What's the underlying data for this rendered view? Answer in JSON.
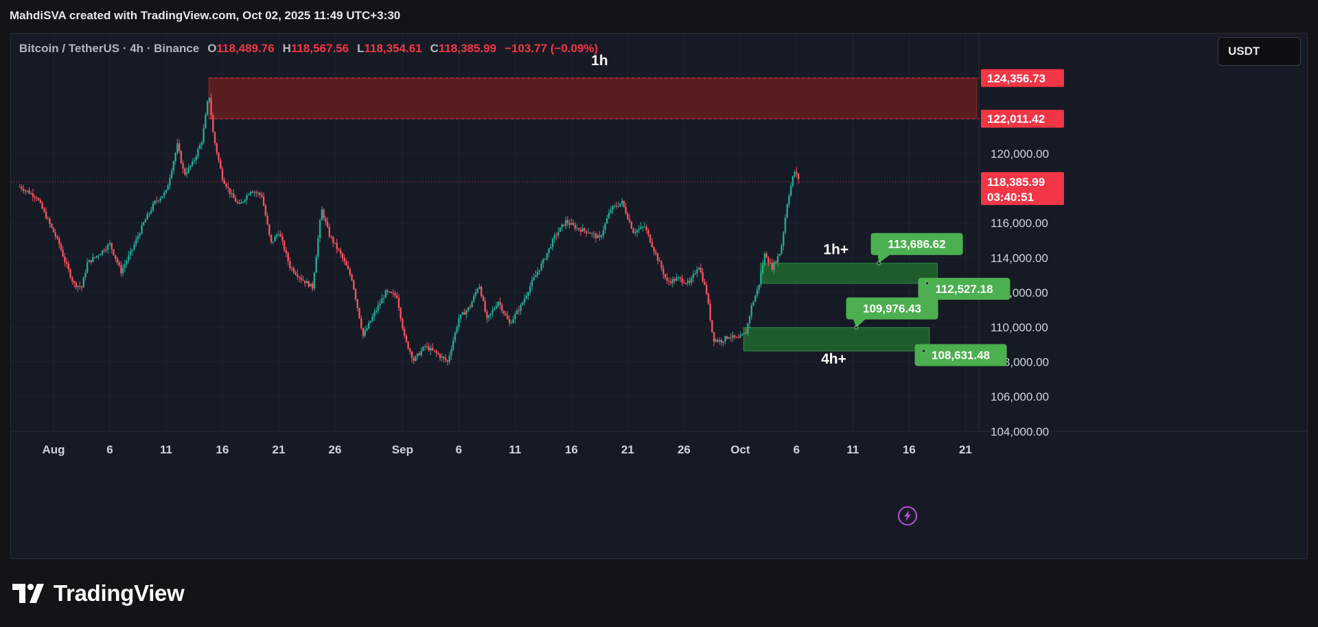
{
  "header": {
    "attribution": "MahdiSVA created with TradingView.com, Oct 02, 2025 11:49 UTC+3:30"
  },
  "legend": {
    "symbol": "Bitcoin / TetherUS · 4h · Binance",
    "open_label": "O",
    "open": "118,489.76",
    "high_label": "H",
    "high": "118,567.56",
    "low_label": "L",
    "low": "118,354.61",
    "close_label": "C",
    "close": "118,385.99",
    "change": "−103.77 (−0.09%)"
  },
  "currency_button": "USDT",
  "footer": {
    "brand": "TradingView"
  },
  "colors": {
    "background": "#161a25",
    "up": "#22ab94",
    "down": "#f7525f",
    "resistance_zone": "#5a1d1f",
    "support_zone": "#1f5c2c",
    "label_green": "#4caf50",
    "label_red": "#f23645"
  },
  "icons": {
    "replay": "lightning-icon",
    "brand": "tradingview-logo-icon"
  },
  "chart_data": {
    "type": "candlestick",
    "timeframe": "4h",
    "ylim": [
      104000,
      126000
    ],
    "x_ticks": [
      {
        "label": "Aug",
        "day": 0
      },
      {
        "label": "6",
        "day": 5
      },
      {
        "label": "11",
        "day": 10
      },
      {
        "label": "16",
        "day": 15
      },
      {
        "label": "21",
        "day": 20
      },
      {
        "label": "26",
        "day": 25
      },
      {
        "label": "Sep",
        "day": 31
      },
      {
        "label": "6",
        "day": 36
      },
      {
        "label": "11",
        "day": 41
      },
      {
        "label": "16",
        "day": 46
      },
      {
        "label": "21",
        "day": 51
      },
      {
        "label": "26",
        "day": 56
      },
      {
        "label": "Oct",
        "day": 61
      },
      {
        "label": "6",
        "day": 66
      },
      {
        "label": "11",
        "day": 71
      },
      {
        "label": "16",
        "day": 76
      },
      {
        "label": "21",
        "day": 81
      }
    ],
    "y_ticks": [
      {
        "label": "120,000.00",
        "value": 120000
      },
      {
        "label": "116,000.00",
        "value": 116000
      },
      {
        "label": "114,000.00",
        "value": 114000
      },
      {
        "label": "112,000.00",
        "value": 112000
      },
      {
        "label": "110,000.00",
        "value": 110000
      },
      {
        "label": "108,000.00",
        "value": 108000
      },
      {
        "label": "106,000.00",
        "value": 106000
      },
      {
        "label": "104,000.00",
        "value": 104000
      }
    ],
    "price_points": [
      {
        "day": -3.0,
        "price": 118100
      },
      {
        "day": -1.5,
        "price": 117500
      },
      {
        "day": 0.5,
        "price": 114800
      },
      {
        "day": 1.0,
        "price": 113800
      },
      {
        "day": 1.8,
        "price": 112500
      },
      {
        "day": 2.5,
        "price": 112300
      },
      {
        "day": 3.0,
        "price": 113700
      },
      {
        "day": 4.0,
        "price": 114200
      },
      {
        "day": 5.0,
        "price": 114800
      },
      {
        "day": 6.0,
        "price": 113200
      },
      {
        "day": 7.0,
        "price": 114500
      },
      {
        "day": 8.0,
        "price": 116000
      },
      {
        "day": 9.0,
        "price": 117200
      },
      {
        "day": 10.0,
        "price": 117800
      },
      {
        "day": 11.0,
        "price": 120500
      },
      {
        "day": 11.6,
        "price": 118800
      },
      {
        "day": 12.4,
        "price": 119500
      },
      {
        "day": 13.2,
        "price": 120800
      },
      {
        "day": 13.8,
        "price": 123500
      },
      {
        "day": 14.2,
        "price": 121000
      },
      {
        "day": 15.0,
        "price": 118600
      },
      {
        "day": 15.8,
        "price": 117600
      },
      {
        "day": 16.5,
        "price": 117000
      },
      {
        "day": 17.5,
        "price": 117900
      },
      {
        "day": 18.5,
        "price": 117600
      },
      {
        "day": 19.3,
        "price": 114800
      },
      {
        "day": 20.0,
        "price": 115500
      },
      {
        "day": 21.0,
        "price": 113500
      },
      {
        "day": 22.0,
        "price": 112800
      },
      {
        "day": 23.0,
        "price": 112300
      },
      {
        "day": 23.8,
        "price": 116800
      },
      {
        "day": 24.5,
        "price": 115300
      },
      {
        "day": 25.5,
        "price": 114200
      },
      {
        "day": 26.5,
        "price": 112800
      },
      {
        "day": 27.5,
        "price": 109500
      },
      {
        "day": 28.5,
        "price": 110800
      },
      {
        "day": 29.5,
        "price": 112000
      },
      {
        "day": 30.5,
        "price": 111800
      },
      {
        "day": 31.2,
        "price": 109300
      },
      {
        "day": 32.0,
        "price": 108100
      },
      {
        "day": 33.0,
        "price": 108900
      },
      {
        "day": 34.0,
        "price": 108500
      },
      {
        "day": 35.0,
        "price": 108000
      },
      {
        "day": 36.0,
        "price": 110500
      },
      {
        "day": 37.0,
        "price": 111200
      },
      {
        "day": 37.8,
        "price": 112500
      },
      {
        "day": 38.5,
        "price": 110400
      },
      {
        "day": 39.5,
        "price": 111500
      },
      {
        "day": 40.5,
        "price": 110200
      },
      {
        "day": 41.5,
        "price": 111200
      },
      {
        "day": 42.5,
        "price": 112600
      },
      {
        "day": 43.5,
        "price": 113800
      },
      {
        "day": 44.5,
        "price": 115200
      },
      {
        "day": 45.5,
        "price": 116100
      },
      {
        "day": 46.5,
        "price": 115700
      },
      {
        "day": 47.5,
        "price": 115500
      },
      {
        "day": 48.5,
        "price": 115100
      },
      {
        "day": 49.5,
        "price": 116800
      },
      {
        "day": 50.5,
        "price": 117200
      },
      {
        "day": 51.5,
        "price": 115500
      },
      {
        "day": 52.5,
        "price": 115800
      },
      {
        "day": 53.5,
        "price": 114200
      },
      {
        "day": 54.5,
        "price": 112600
      },
      {
        "day": 55.5,
        "price": 112800
      },
      {
        "day": 56.5,
        "price": 112500
      },
      {
        "day": 57.3,
        "price": 113600
      },
      {
        "day": 58.0,
        "price": 112000
      },
      {
        "day": 58.6,
        "price": 109300
      },
      {
        "day": 59.3,
        "price": 109200
      },
      {
        "day": 60.0,
        "price": 109500
      },
      {
        "day": 60.8,
        "price": 109300
      },
      {
        "day": 61.5,
        "price": 109700
      },
      {
        "day": 62.0,
        "price": 111200
      },
      {
        "day": 62.6,
        "price": 112300
      },
      {
        "day": 63.2,
        "price": 114300
      },
      {
        "day": 63.8,
        "price": 113400
      },
      {
        "day": 64.6,
        "price": 114400
      },
      {
        "day": 65.2,
        "price": 117300
      },
      {
        "day": 65.8,
        "price": 119000
      },
      {
        "day": 66.3,
        "price": 118400
      }
    ],
    "zones": [
      {
        "type": "resistance",
        "top": 124356.73,
        "bottom": 122011.42,
        "start_day": 13.8,
        "end_day": 82.0
      },
      {
        "type": "support",
        "label": "1h+",
        "top": 113686.62,
        "bottom": 112527.18,
        "start_day": 62.8,
        "end_day": 78.5
      },
      {
        "type": "support",
        "label": "4h+",
        "top": 109976.43,
        "bottom": 108631.48,
        "start_day": 61.3,
        "end_day": 77.8
      }
    ],
    "price_labels": [
      {
        "text": "124,356.73",
        "value": 124356.73,
        "type": "axis"
      },
      {
        "text": "122,011.42",
        "value": 122011.42,
        "type": "axis"
      },
      {
        "text": "113,686.62",
        "value": 113686.62,
        "type": "callout"
      },
      {
        "text": "112,527.18",
        "value": 112527.18,
        "type": "callout"
      },
      {
        "text": "109,976.43",
        "value": 109976.43,
        "type": "callout"
      },
      {
        "text": "108,631.48",
        "value": 108631.48,
        "type": "callout"
      }
    ],
    "last_price": {
      "text": "118,385.99",
      "value": 118385.99,
      "countdown": "03:40:51"
    },
    "annotations": [
      {
        "text": "1h",
        "day": 48.5,
        "price": 125100
      },
      {
        "text": "1h+",
        "day": 69.5,
        "price": 114200
      },
      {
        "text": "4h+",
        "day": 69.3,
        "price": 107900
      }
    ]
  }
}
